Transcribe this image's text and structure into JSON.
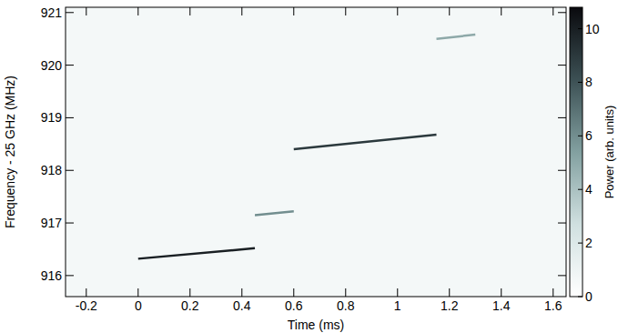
{
  "chart_data": {
    "type": "spectrogram",
    "x_label": "Time (ms)",
    "y_label": "Frequency - 25 GHz (MHz)",
    "xlim": [
      -0.28,
      1.65
    ],
    "xticks": [
      -0.2,
      0,
      0.2,
      0.4,
      0.6,
      0.8,
      1,
      1.2,
      1.4,
      1.6
    ],
    "ylim": [
      915.6,
      921.1
    ],
    "yticks": [
      916,
      917,
      918,
      919,
      920,
      921
    ],
    "tracks": [
      {
        "t": [
          0,
          0.45
        ],
        "f": [
          916.32,
          916.52
        ],
        "power": 10
      },
      {
        "t": [
          0.45,
          0.6
        ],
        "f": [
          917.15,
          917.22
        ],
        "power": 6
      },
      {
        "t": [
          0.6,
          1.15
        ],
        "f": [
          918.4,
          918.68
        ],
        "power": 9
      },
      {
        "t": [
          1.15,
          1.3
        ],
        "f": [
          920.5,
          920.58
        ],
        "power": 5
      }
    ],
    "colorbar": {
      "label": "Power (arb. units)",
      "range": [
        0,
        10.8
      ],
      "ticks": [
        0,
        2,
        4,
        6,
        8,
        10
      ]
    }
  }
}
